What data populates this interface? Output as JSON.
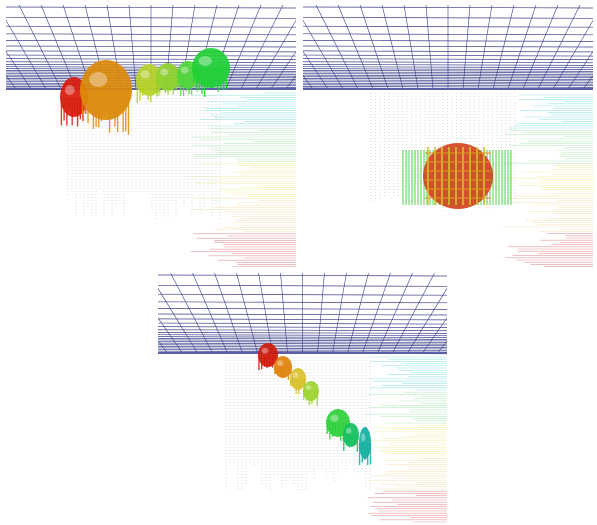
{
  "figure": {
    "panels": [
      {
        "view": "oblique-left",
        "blob_colors": [
          "#d81a0c",
          "#dc8a0a",
          "#b7d22a",
          "#8fd22e",
          "#4fd83a",
          "#1fd035"
        ]
      },
      {
        "view": "front",
        "blob_colors": [
          "#d0401a",
          "#e09a20",
          "#d4c030"
        ]
      },
      {
        "view": "oblique-right",
        "blob_colors": [
          "#d01a0a",
          "#e0820c",
          "#d8c02a",
          "#9ed432",
          "#2ed03a",
          "#12c060",
          "#10b0a0"
        ]
      }
    ],
    "colors": {
      "grid": "#3a3f8a",
      "grid_dense": "#5a5fa8",
      "vertical_lines": "#b8b8c0",
      "horizontal_lines": [
        "#7fe0e0",
        "#a8e8b0",
        "#f0f0a0",
        "#f4e0b0",
        "#e08080"
      ],
      "background": "#ffffff"
    }
  }
}
